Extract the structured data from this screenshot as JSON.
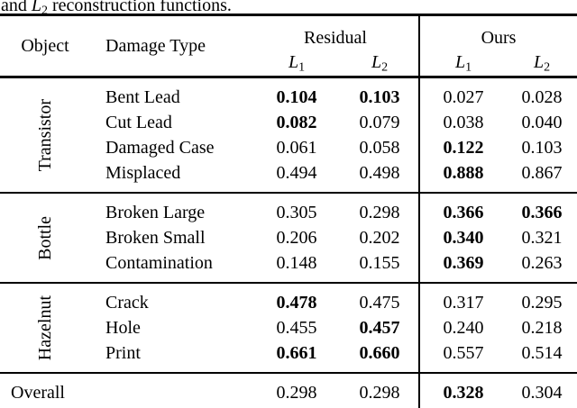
{
  "caption": {
    "prefix": "and ",
    "math_letter": "L",
    "math_sub": "2",
    "suffix": " reconstruction functions."
  },
  "table": {
    "headers": {
      "object": "Object",
      "damage_type": "Damage Type",
      "group_residual": "Residual",
      "group_ours": "Ours",
      "sub_headers": [
        {
          "letter": "L",
          "sub": "1"
        },
        {
          "letter": "L",
          "sub": "2"
        },
        {
          "letter": "L",
          "sub": "1"
        },
        {
          "letter": "L",
          "sub": "2"
        }
      ]
    },
    "sections": [
      {
        "object": "Transistor",
        "rows": [
          {
            "damage": "Bent Lead",
            "values": [
              "0.104",
              "0.103",
              "0.027",
              "0.028"
            ],
            "bold": [
              true,
              true,
              false,
              false
            ]
          },
          {
            "damage": "Cut Lead",
            "values": [
              "0.082",
              "0.079",
              "0.038",
              "0.040"
            ],
            "bold": [
              true,
              false,
              false,
              false
            ]
          },
          {
            "damage": "Damaged Case",
            "values": [
              "0.061",
              "0.058",
              "0.122",
              "0.103"
            ],
            "bold": [
              false,
              false,
              true,
              false
            ]
          },
          {
            "damage": "Misplaced",
            "values": [
              "0.494",
              "0.498",
              "0.888",
              "0.867"
            ],
            "bold": [
              false,
              false,
              true,
              false
            ]
          }
        ]
      },
      {
        "object": "Bottle",
        "rows": [
          {
            "damage": "Broken Large",
            "values": [
              "0.305",
              "0.298",
              "0.366",
              "0.366"
            ],
            "bold": [
              false,
              false,
              true,
              true
            ]
          },
          {
            "damage": "Broken Small",
            "values": [
              "0.206",
              "0.202",
              "0.340",
              "0.321"
            ],
            "bold": [
              false,
              false,
              true,
              false
            ]
          },
          {
            "damage": "Contamination",
            "values": [
              "0.148",
              "0.155",
              "0.369",
              "0.263"
            ],
            "bold": [
              false,
              false,
              true,
              false
            ]
          }
        ]
      },
      {
        "object": "Hazelnut",
        "rows": [
          {
            "damage": "Crack",
            "values": [
              "0.478",
              "0.475",
              "0.317",
              "0.295"
            ],
            "bold": [
              true,
              false,
              false,
              false
            ]
          },
          {
            "damage": "Hole",
            "values": [
              "0.455",
              "0.457",
              "0.240",
              "0.218"
            ],
            "bold": [
              false,
              true,
              false,
              false
            ]
          },
          {
            "damage": "Print",
            "values": [
              "0.661",
              "0.660",
              "0.557",
              "0.514"
            ],
            "bold": [
              true,
              true,
              false,
              false
            ]
          }
        ]
      }
    ],
    "overall": {
      "label": "Overall",
      "values": [
        "0.298",
        "0.298",
        "0.328",
        "0.304"
      ],
      "bold": [
        false,
        false,
        true,
        false
      ]
    }
  },
  "colors": {
    "text": "#000000",
    "background": "#ffffff",
    "rule": "#000000"
  }
}
